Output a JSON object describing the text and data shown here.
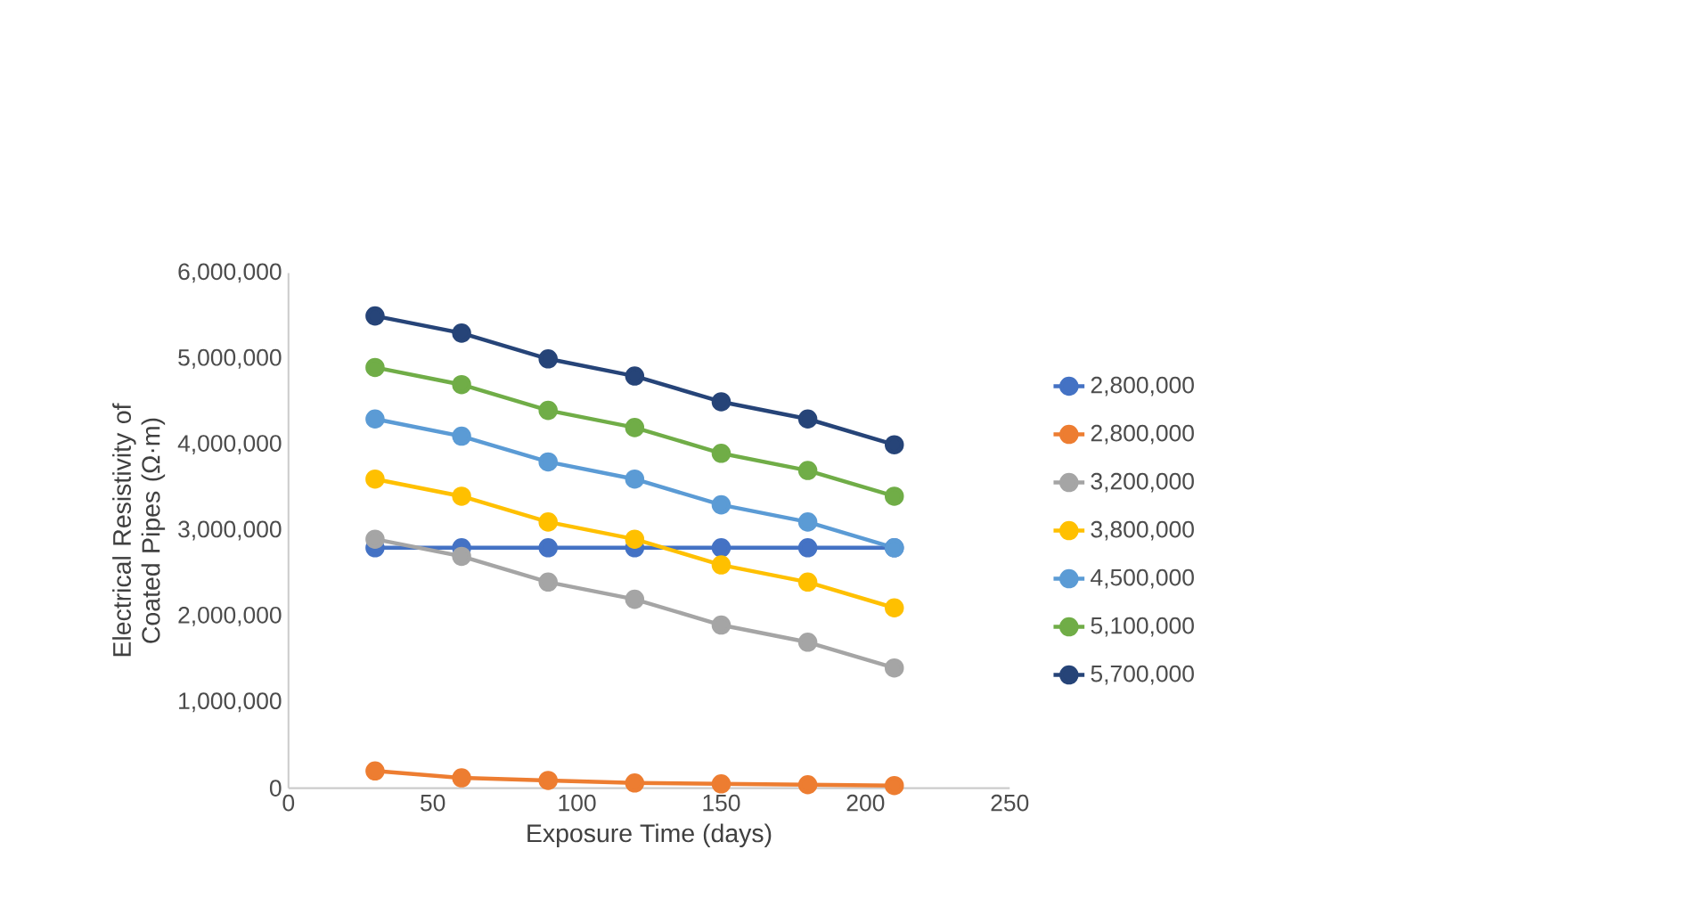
{
  "chart_data": {
    "type": "line",
    "xlabel": "Exposure Time (days)",
    "ylabel": "Electrical Resistivity of Coated Pipes (Ω·m)",
    "xlim": [
      0,
      250
    ],
    "xticks": [
      0,
      50,
      100,
      150,
      200,
      250
    ],
    "ylim": [
      0,
      6000000
    ],
    "yticks": [
      {
        "value": 0,
        "label": "0"
      },
      {
        "value": 1000000,
        "label": "1,000,000"
      },
      {
        "value": 2000000,
        "label": "2,000,000"
      },
      {
        "value": 3000000,
        "label": "3,000,000"
      },
      {
        "value": 4000000,
        "label": "4,000,000"
      },
      {
        "value": 5000000,
        "label": "5,000,000"
      },
      {
        "value": 6000000,
        "label": "6,000,000"
      }
    ],
    "x": [
      30,
      60,
      90,
      120,
      150,
      180,
      210
    ],
    "marker": "circle",
    "legend": "right",
    "grid": false,
    "series": [
      {
        "name": "2,800,000",
        "color": "#4472c4",
        "values": [
          2800000,
          2800000,
          2800000,
          2800000,
          2800000,
          2800000,
          2800000
        ]
      },
      {
        "name": "2,800,000",
        "color": "#ed7d31",
        "values": [
          200000,
          120000,
          90000,
          60000,
          50000,
          40000,
          30000
        ]
      },
      {
        "name": "3,200,000",
        "color": "#a5a5a5",
        "values": [
          2900000,
          2700000,
          2400000,
          2200000,
          1900000,
          1700000,
          1400000
        ]
      },
      {
        "name": "3,800,000",
        "color": "#ffc000",
        "values": [
          3600000,
          3400000,
          3100000,
          2900000,
          2600000,
          2400000,
          2100000
        ]
      },
      {
        "name": "4,500,000",
        "color": "#5b9bd5",
        "values": [
          4300000,
          4100000,
          3800000,
          3600000,
          3300000,
          3100000,
          2800000
        ]
      },
      {
        "name": "5,100,000",
        "color": "#70ad47",
        "values": [
          4900000,
          4700000,
          4400000,
          4200000,
          3900000,
          3700000,
          3400000
        ]
      },
      {
        "name": "5,700,000",
        "color": "#264478",
        "values": [
          5500000,
          5300000,
          5000000,
          4800000,
          4500000,
          4300000,
          4000000
        ]
      }
    ]
  }
}
